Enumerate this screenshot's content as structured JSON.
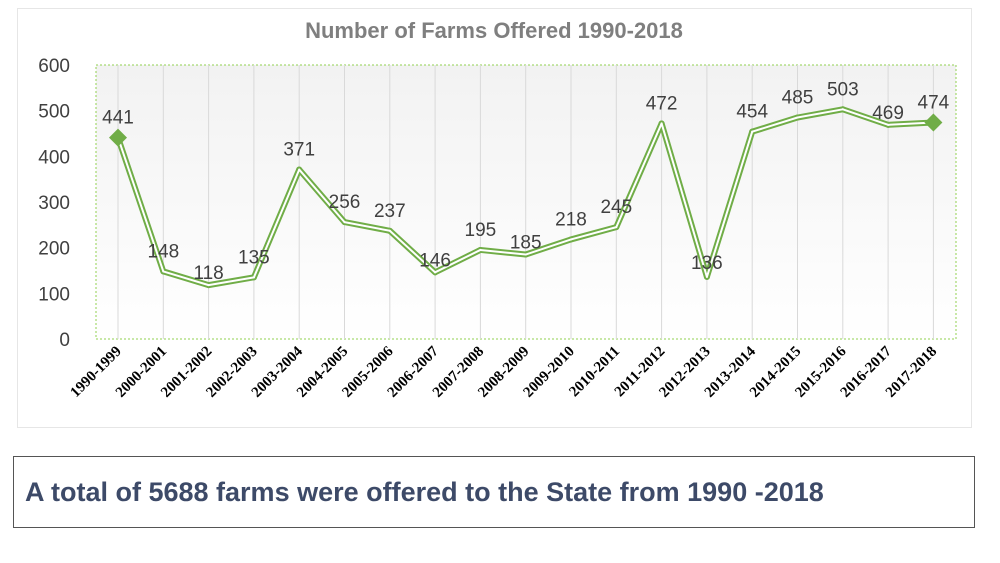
{
  "chart_data": {
    "type": "line",
    "title": "Number of Farms Offered 1990-2018",
    "categories": [
      "1990-1999",
      "2000-2001",
      "2001-2002",
      "2002-2003",
      "2003-2004",
      "2004-2005",
      "2005-2006",
      "2006-2007",
      "2007-2008",
      "2008-2009",
      "2009-2010",
      "2010-2011",
      "2011-2012",
      "2012-2013",
      "2013-2014",
      "2014-2015",
      "2015-2016",
      "2016-2017",
      "2017-2018"
    ],
    "series": [
      {
        "values": [
          441,
          148,
          118,
          135,
          371,
          256,
          237,
          146,
          195,
          185,
          218,
          245,
          472,
          136,
          454,
          485,
          503,
          469,
          474
        ]
      }
    ],
    "data_labels": [
      "441",
      "148",
      "118",
      "135",
      "371",
      "256",
      "237",
      "146",
      "195",
      "185",
      "218",
      "245",
      "472",
      "136",
      "454",
      "485",
      "503",
      "469",
      "474"
    ],
    "ylim": [
      0,
      600
    ],
    "yticks": [
      "0",
      "100",
      "200",
      "300",
      "400",
      "500",
      "600"
    ],
    "grid": "vertical",
    "legend": "none",
    "colors": {
      "line": "#70ad47",
      "line_inner": "#ffffff",
      "grid": "#d9d9d9",
      "title": "#7f7f7f",
      "tick_text": "#404040",
      "plot_bg_top": "#f2f2f2",
      "plot_bg_bottom": "#ffffff",
      "plot_border": "#92d050"
    }
  },
  "caption": {
    "text": "A total of 5688 farms were offered to the State from 1990 -2018",
    "color": "#3d4a68"
  }
}
